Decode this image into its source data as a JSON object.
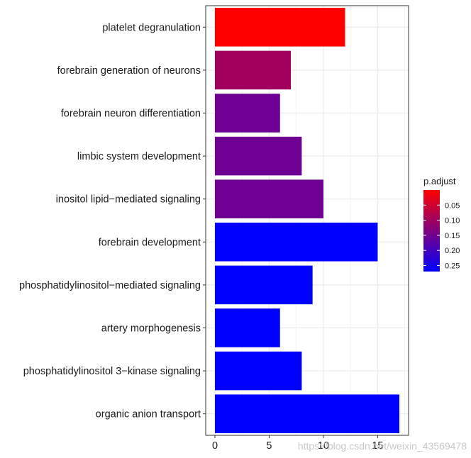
{
  "chart_data": {
    "type": "bar",
    "orientation": "horizontal",
    "categories": [
      "platelet degranulation",
      "forebrain generation of neurons",
      "forebrain neuron differentiation",
      "limbic system development",
      "inositol lipid−mediated signaling",
      "forebrain development",
      "phosphatidylinositol−mediated signaling",
      "artery morphogenesis",
      "phosphatidylinositol 3−kinase signaling",
      "organic anion transport"
    ],
    "values": [
      12,
      7,
      6,
      8,
      10,
      15,
      9,
      6,
      8,
      17
    ],
    "p_adjust": [
      0.0,
      0.1,
      0.155,
      0.155,
      0.155,
      0.27,
      0.27,
      0.27,
      0.27,
      0.27
    ],
    "xlim": [
      -0.85,
      17.85
    ],
    "x_ticks": [
      0,
      5,
      10,
      15
    ],
    "title": "",
    "xlabel": "",
    "ylabel": "",
    "grid": true,
    "legend": {
      "title": "p.adjust",
      "position": "right",
      "range": [
        0.0,
        0.27
      ],
      "ticks": [
        0.05,
        0.1,
        0.15,
        0.2,
        0.25
      ],
      "tick_labels": [
        "0.05",
        "0.10",
        "0.15",
        "0.20",
        "0.25"
      ],
      "color_low": "#FF0000",
      "color_high": "#0000FF"
    }
  },
  "watermark": "https://blog.csdn.net/weixin_43569478"
}
